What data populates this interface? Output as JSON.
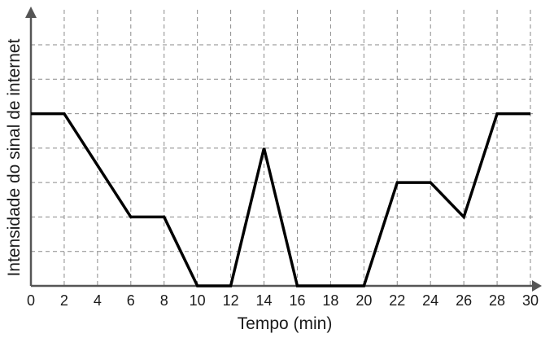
{
  "chart_data": {
    "type": "line",
    "xlabel": "Tempo (min)",
    "ylabel": "Intensidade do sinal de internet",
    "x_ticks": [
      0,
      2,
      4,
      6,
      8,
      10,
      12,
      14,
      16,
      18,
      20,
      22,
      24,
      26,
      28,
      30
    ],
    "xlim": [
      0,
      30
    ],
    "ylim": [
      0,
      7
    ],
    "y_tick_labels": false,
    "grid": true,
    "series": [
      {
        "x": [
          0,
          2,
          6,
          8,
          10,
          12,
          14,
          16,
          20,
          22,
          24,
          26,
          28,
          30
        ],
        "y": [
          5,
          5,
          2,
          2,
          0,
          0,
          4,
          0,
          0,
          3,
          3,
          2,
          5,
          5
        ],
        "color": "#000000"
      }
    ]
  }
}
